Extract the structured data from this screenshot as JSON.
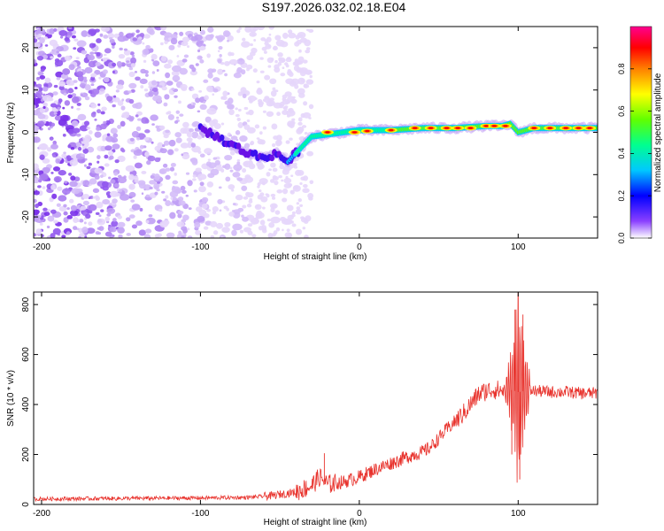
{
  "title": "S197.2026.032.02.18.E04",
  "chart_data": [
    {
      "type": "heatmap",
      "title": "S197.2026.032.02.18.E04",
      "xlabel": "Height of straight line (km)",
      "ylabel": "Frequency (Hz)",
      "xlim": [
        -205,
        150
      ],
      "ylim": [
        -25,
        25
      ],
      "xticks": [
        -200,
        -100,
        0,
        100
      ],
      "xtick_labels": [
        "-200",
        "-100",
        "0",
        "100"
      ],
      "yticks": [
        20,
        10,
        0,
        -10,
        -20
      ],
      "ytick_labels": [
        "20",
        "10",
        "0",
        "-10",
        "-20"
      ],
      "colorbar": {
        "label": "Normalized spectral amplitude",
        "range": [
          0,
          1
        ],
        "ticks": [
          0.0,
          0.2,
          0.4,
          0.6,
          0.8
        ],
        "tick_labels": [
          "0.0",
          "0.2",
          "0.4",
          "0.6",
          "0.8"
        ],
        "colors": [
          "#ffffff",
          "#6a00ff",
          "#0000ff",
          "#00c8ff",
          "#00ff80",
          "#80ff00",
          "#ffff00",
          "#ff8000",
          "#ff0000",
          "#ff0088"
        ]
      },
      "ridge": {
        "description_points_x_km": [
          -100,
          -90,
          -80,
          -70,
          -60,
          -52,
          -45,
          -40,
          -35,
          -30,
          -20,
          -10,
          0,
          20,
          40,
          60,
          80,
          90,
          95,
          100,
          110,
          150
        ],
        "freq_hz": [
          1,
          -1,
          -3,
          -5,
          -6,
          -5,
          -7,
          -5,
          -3,
          -1,
          -0.5,
          0,
          0.5,
          0.5,
          1,
          1,
          1.5,
          1.5,
          2,
          0,
          1,
          1
        ]
      },
      "noise_region_km": [
        -205,
        -40
      ]
    },
    {
      "type": "line",
      "xlabel": "Height of straight line (km)",
      "ylabel": "SNR (10 * v/v)",
      "xlim": [
        -205,
        150
      ],
      "ylim": [
        0,
        850
      ],
      "xticks": [
        -200,
        -100,
        0,
        100
      ],
      "xtick_labels": [
        "-200",
        "-100",
        "0",
        "100"
      ],
      "yticks": [
        0,
        200,
        400,
        600,
        800
      ],
      "ytick_labels": [
        "0",
        "200",
        "400",
        "600",
        "800"
      ],
      "series": [
        {
          "name": "SNR",
          "color": "#e8322c",
          "x": [
            -205,
            -150,
            -100,
            -70,
            -55,
            -40,
            -30,
            -25,
            -20,
            -10,
            0,
            10,
            20,
            30,
            40,
            45,
            50,
            55,
            60,
            65,
            70,
            75,
            80,
            85,
            90,
            95,
            100,
            105,
            110,
            120,
            130,
            140,
            150
          ],
          "y": [
            22,
            24,
            26,
            28,
            35,
            50,
            75,
            110,
            80,
            90,
            110,
            140,
            165,
            190,
            210,
            230,
            265,
            300,
            330,
            360,
            400,
            440,
            455,
            460,
            455,
            460,
            450,
            455,
            455,
            450,
            450,
            445,
            445
          ],
          "spikes": [
            {
              "x": -22,
              "y": 205
            },
            {
              "x": 100,
              "y": 850
            },
            {
              "x": 101,
              "y": 100
            },
            {
              "x": 98,
              "y": 780
            },
            {
              "x": 103,
              "y": 760
            },
            {
              "x": 96,
              "y": 200
            }
          ]
        }
      ]
    }
  ]
}
